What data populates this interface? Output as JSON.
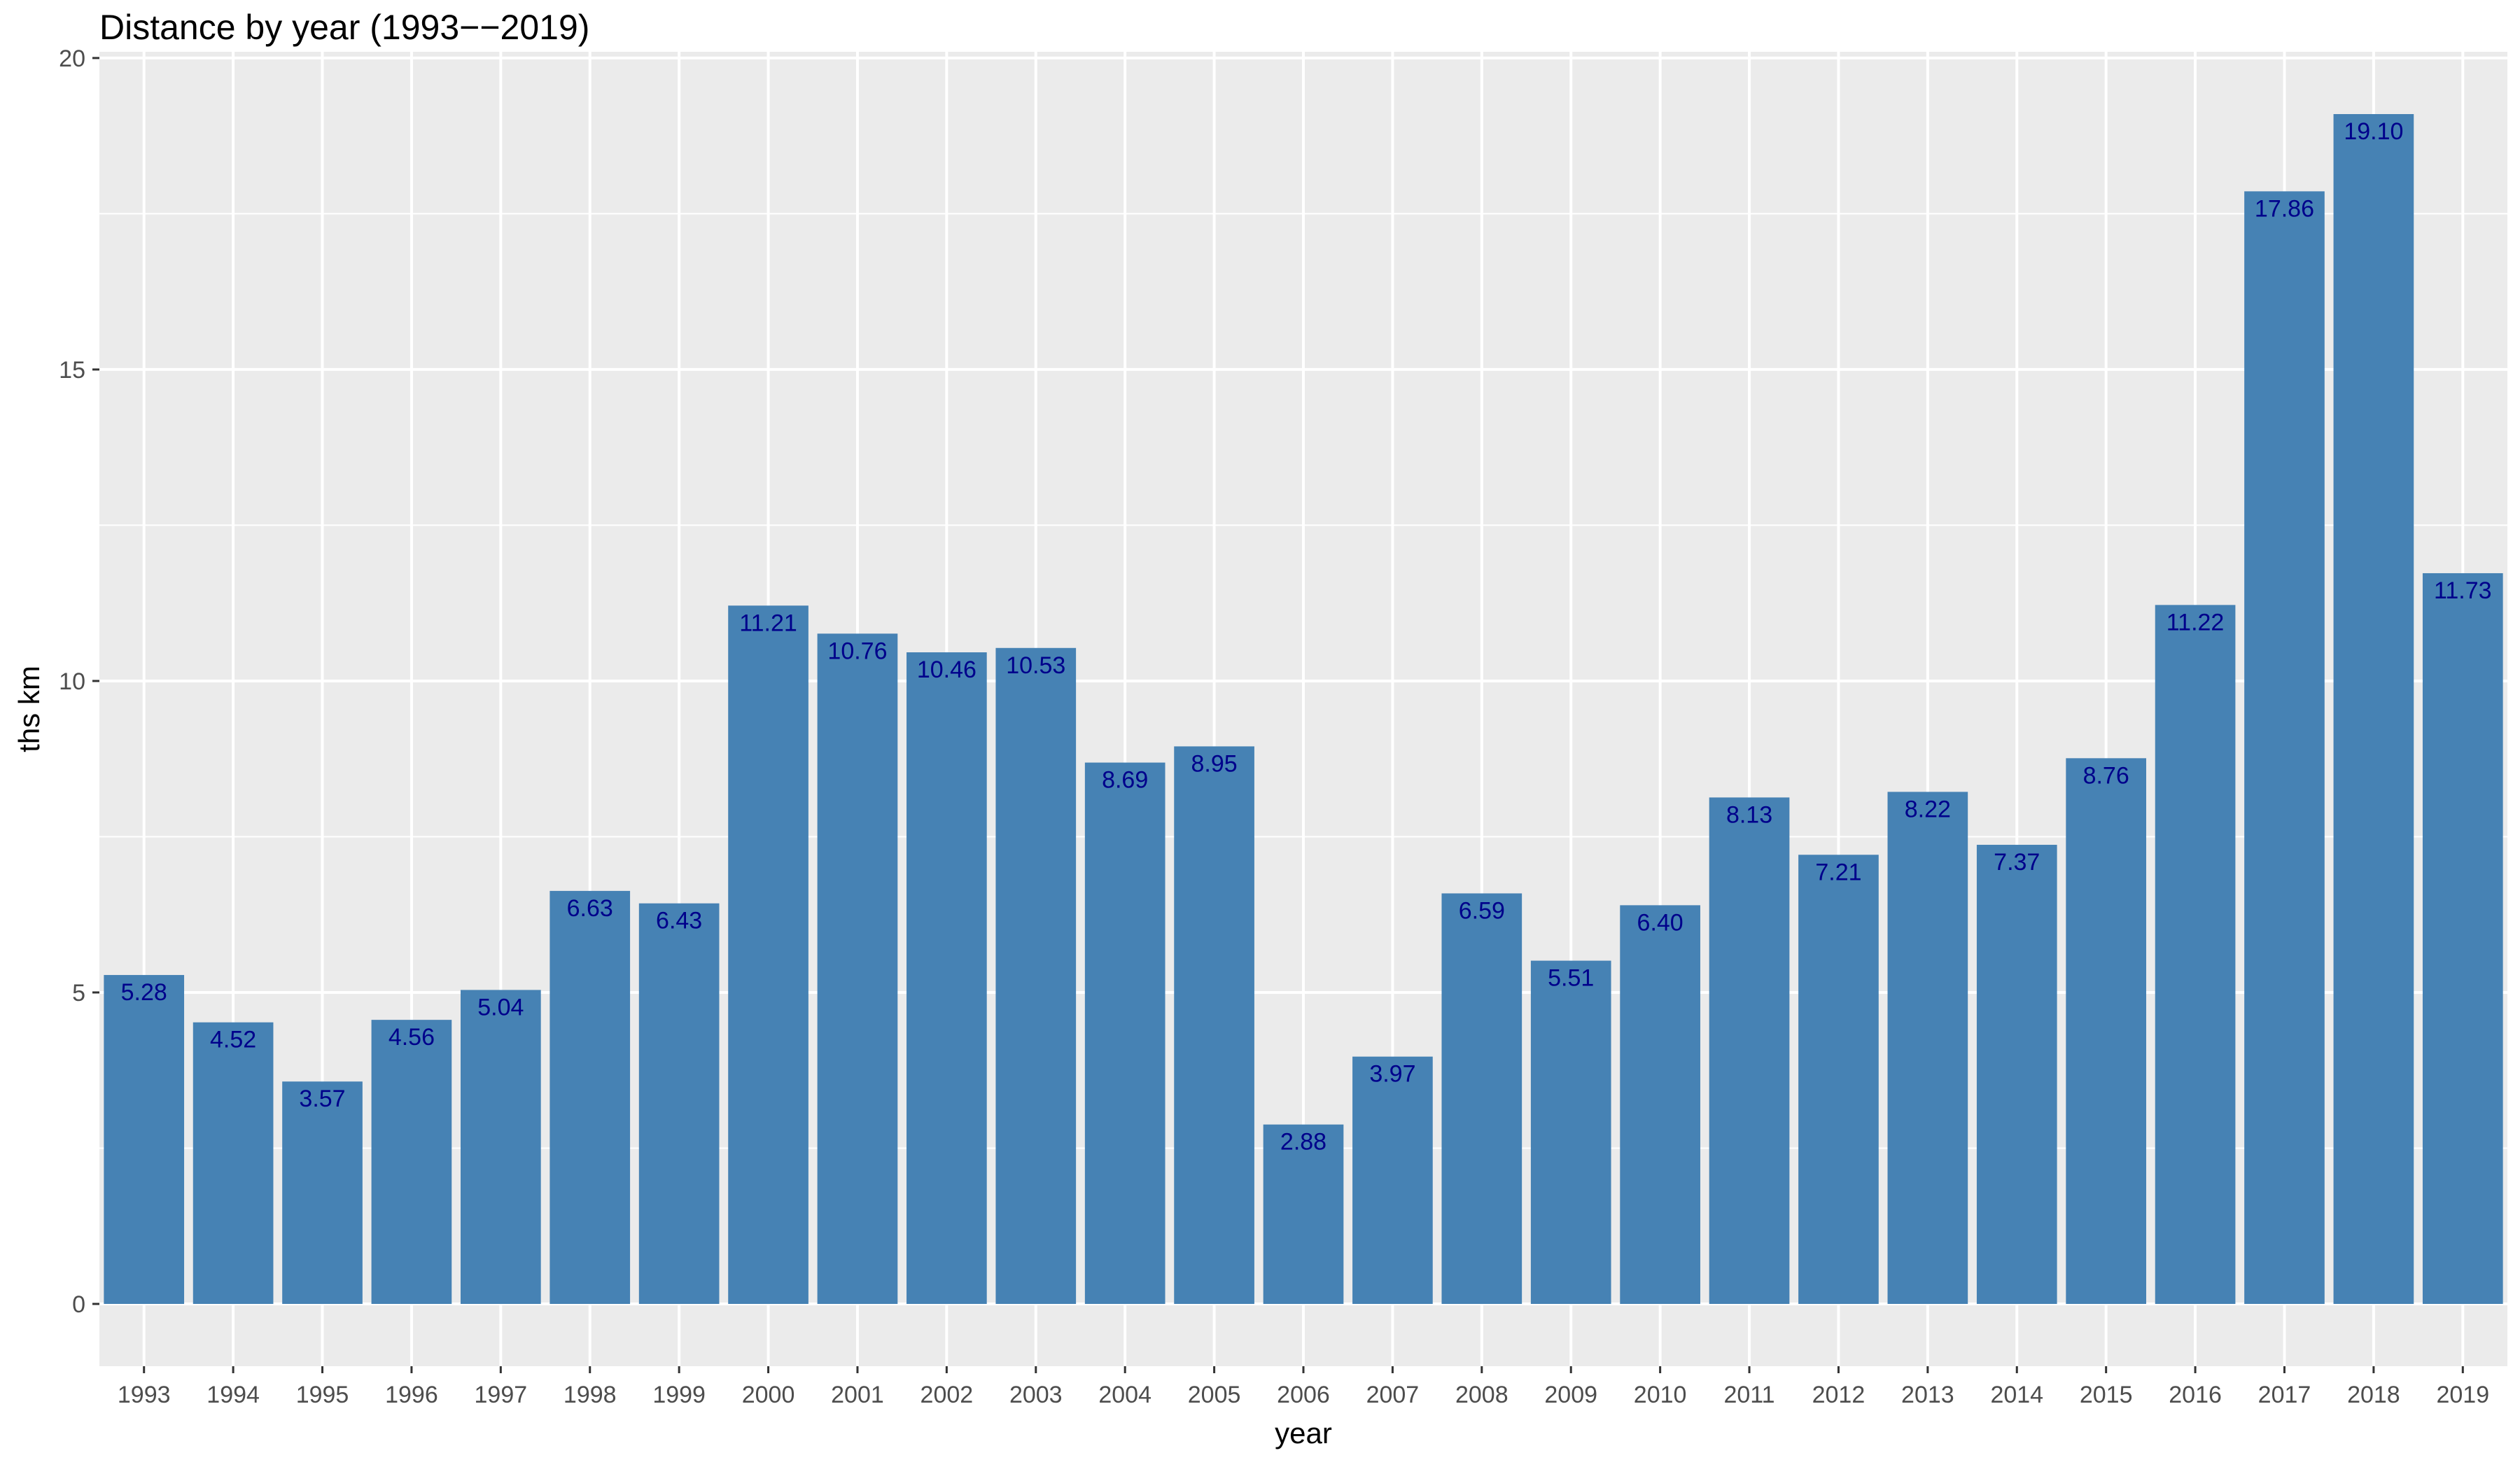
{
  "chart_data": {
    "type": "bar",
    "title": "Distance by year (1993−−2019)",
    "xlabel": "year",
    "ylabel": "ths km",
    "ylim": [
      -1,
      20.1
    ],
    "yticks": [
      0,
      5,
      10,
      15,
      20
    ],
    "grid": true,
    "bar_color": "#4682b4",
    "label_color": "#00008b",
    "panel_background": "#ebebeb",
    "categories": [
      "1993",
      "1994",
      "1995",
      "1996",
      "1997",
      "1998",
      "1999",
      "2000",
      "2001",
      "2002",
      "2003",
      "2004",
      "2005",
      "2006",
      "2007",
      "2008",
      "2009",
      "2010",
      "2011",
      "2012",
      "2013",
      "2014",
      "2015",
      "2016",
      "2017",
      "2018",
      "2019"
    ],
    "values": [
      5.28,
      4.52,
      3.57,
      4.56,
      5.04,
      6.63,
      6.43,
      11.21,
      10.76,
      10.46,
      10.53,
      8.69,
      8.95,
      2.88,
      3.97,
      6.59,
      5.51,
      6.4,
      8.13,
      7.21,
      8.22,
      7.37,
      8.76,
      11.22,
      17.86,
      19.1,
      11.73
    ],
    "labels": [
      "5.28",
      "4.52",
      "3.57",
      "4.56",
      "5.04",
      "6.63",
      "6.43",
      "11.21",
      "10.76",
      "10.46",
      "10.53",
      "8.69",
      "8.95",
      "2.88",
      "3.97",
      "6.59",
      "5.51",
      "6.40",
      "8.13",
      "7.21",
      "8.22",
      "7.37",
      "8.76",
      "11.22",
      "17.86",
      "19.10",
      "11.73"
    ]
  }
}
